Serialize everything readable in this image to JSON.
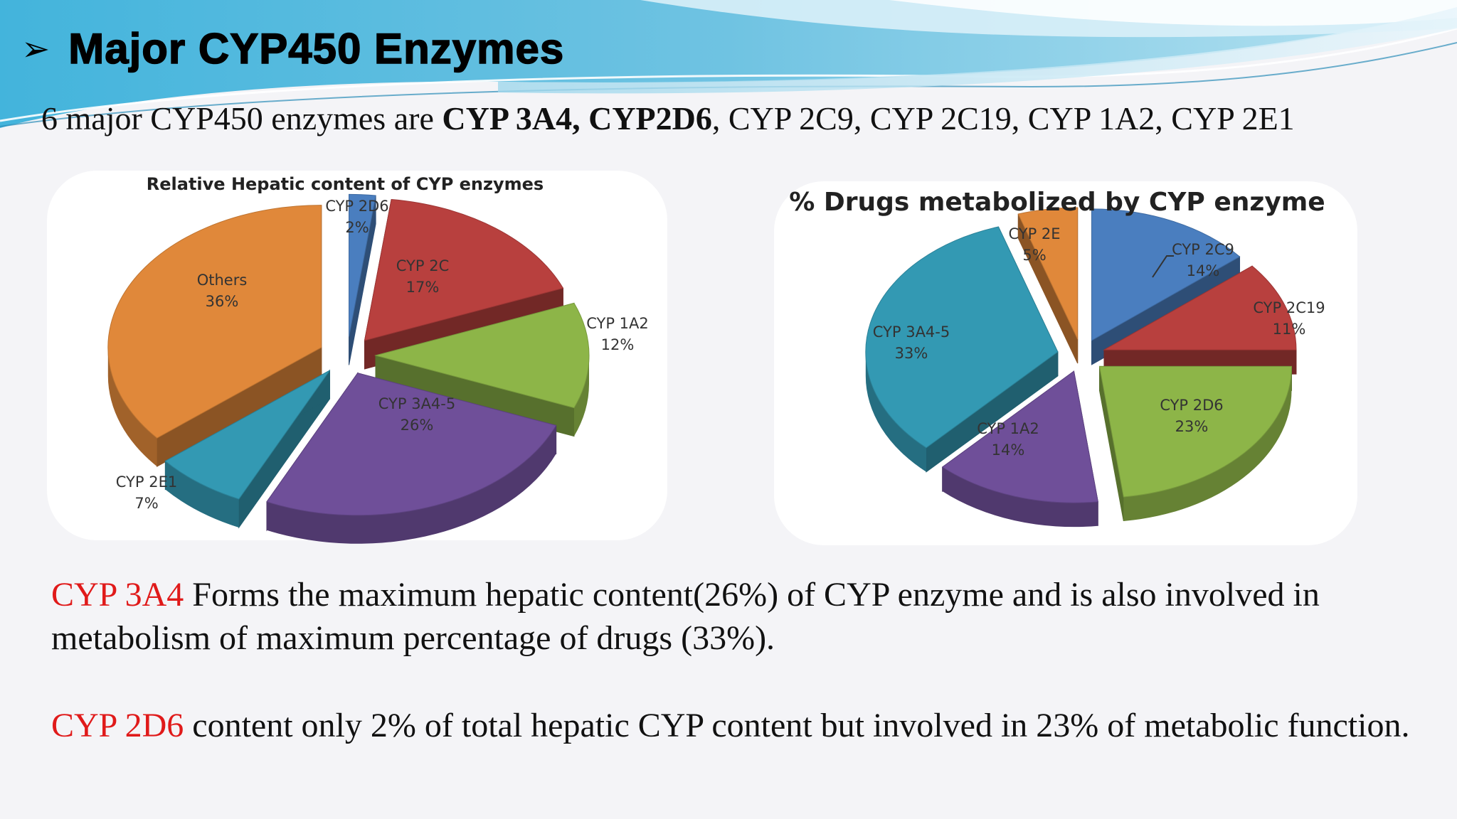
{
  "header": {
    "title": "Major CYP450 Enzymes",
    "arrow_icon": "arrowhead-bullet-icon"
  },
  "intro": {
    "prefix": "6 major CYP450 enzymes are ",
    "bold_1": "CYP 3A4,",
    "bold_2": "CYP2D6",
    "suffix": ", CYP 2C9, CYP 2C19, CYP 1A2, CYP 2E1"
  },
  "chart_data": [
    {
      "type": "pie",
      "title": "Relative Hepatic content of CYP enzymes",
      "slices": [
        {
          "label": "CYP 2D6",
          "value_label": "2%",
          "value": 2,
          "color": "#4a7ebf"
        },
        {
          "label": "CYP 2C",
          "value_label": "17%",
          "value": 17,
          "color": "#b8403e"
        },
        {
          "label": "CYP 1A2",
          "value_label": "12%",
          "value": 12,
          "color": "#8db548"
        },
        {
          "label": "CYP 3A4-5",
          "value_label": "26%",
          "value": 26,
          "color": "#6f4f99"
        },
        {
          "label": "CYP 2E1",
          "value_label": "7%",
          "value": 7,
          "color": "#3399b3"
        },
        {
          "label": "Others",
          "value_label": "36%",
          "value": 36,
          "color": "#e0883a"
        }
      ]
    },
    {
      "type": "pie",
      "title": "% Drugs metabolized by CYP enzyme",
      "slices": [
        {
          "label": "CYP 2C9",
          "value_label": "14%",
          "value": 14,
          "color": "#4a7ebf"
        },
        {
          "label": "CYP 2C19",
          "value_label": "11%",
          "value": 11,
          "color": "#b8403e"
        },
        {
          "label": "CYP 2D6",
          "value_label": "23%",
          "value": 23,
          "color": "#8db548"
        },
        {
          "label": "CYP 1A2",
          "value_label": "14%",
          "value": 14,
          "color": "#6f4f99"
        },
        {
          "label": "CYP 3A4-5",
          "value_label": "33%",
          "value": 33,
          "color": "#3399b3"
        },
        {
          "label": "CYP 2E",
          "value_label": "5%",
          "value": 5,
          "color": "#e0883a"
        }
      ]
    }
  ],
  "notes": [
    {
      "highlight": "CYP 3A4",
      "text": " Forms the maximum hepatic content(26%) of CYP enzyme and is also involved in metabolism of maximum percentage of drugs (33%)."
    },
    {
      "highlight": "CYP 2D6",
      "text": " content only 2% of total hepatic CYP content but involved in 23% of metabolic function."
    }
  ],
  "colors": {
    "note_highlight": "#e01a1a",
    "wave_dark": "#3c9fc8",
    "wave_light": "#9fd6ea"
  }
}
